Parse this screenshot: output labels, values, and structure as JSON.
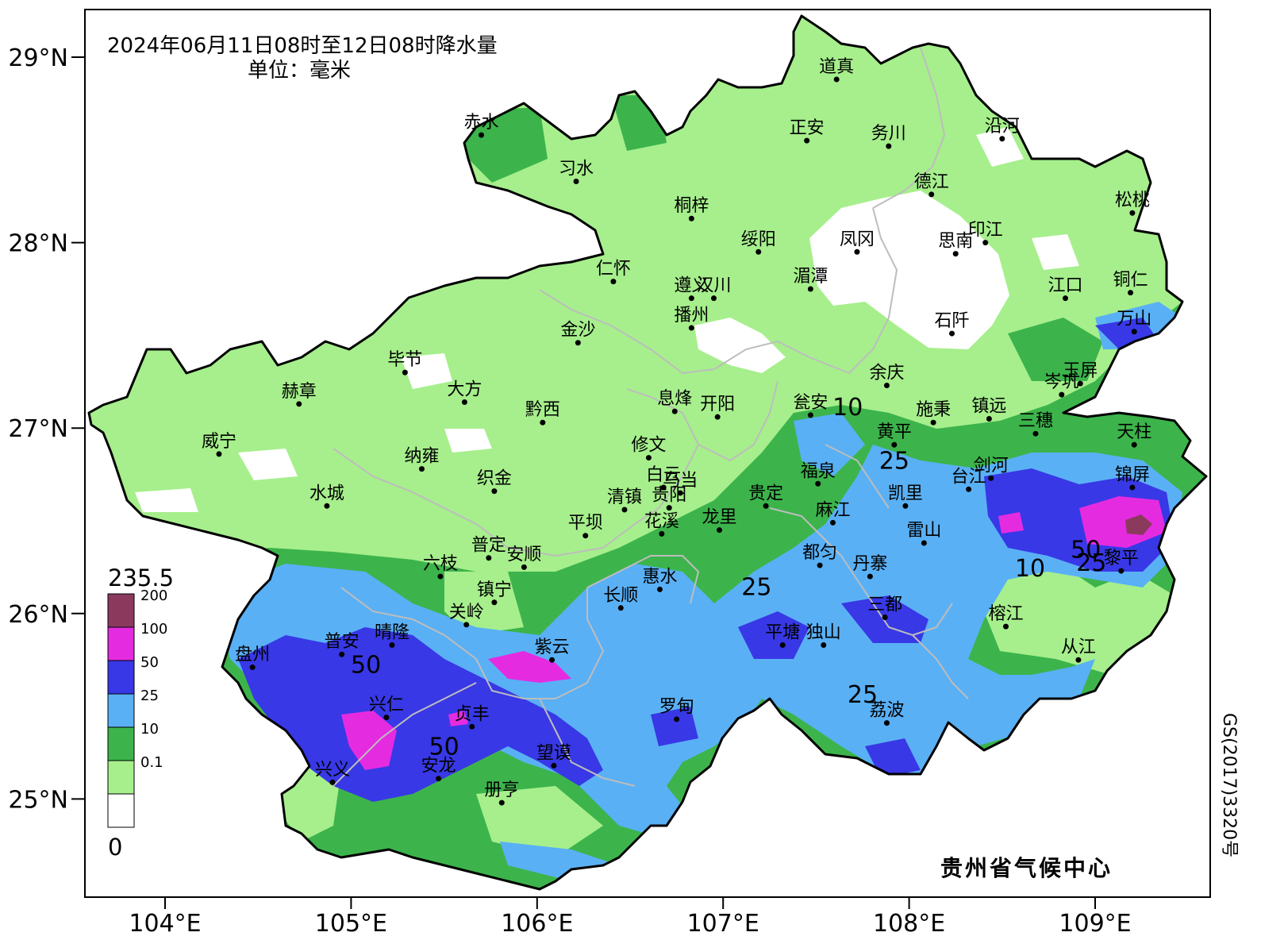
{
  "title": {
    "line1": "2024年06月11日08时至12日08时降水量",
    "line2": "单位：毫米"
  },
  "credit": "贵州省气候中心",
  "approval_no": "GS(2017)3320号",
  "axes": {
    "latitude_labels": [
      "29°N",
      "28°N",
      "27°N",
      "26°N",
      "25°N"
    ],
    "longitude_labels": [
      "104°E",
      "105°E",
      "106°E",
      "107°E",
      "108°E",
      "109°E"
    ]
  },
  "legend": {
    "max_label": "235.5",
    "min_label": "0",
    "classes": [
      {
        "label": "200",
        "color": "#8b3a5e"
      },
      {
        "label": "100",
        "color": "#e52be0"
      },
      {
        "label": "50",
        "color": "#3838e6"
      },
      {
        "label": "25",
        "color": "#5ab0f5"
      },
      {
        "label": "10",
        "color": "#3cb44b"
      },
      {
        "label": "0.1",
        "color": "#a6ef8c"
      },
      {
        "label": "",
        "color": "#ffffff"
      }
    ]
  },
  "cities": [
    {
      "name": "道真",
      "lon": 107.61,
      "lat": 28.88
    },
    {
      "name": "赤水",
      "lon": 105.7,
      "lat": 28.58
    },
    {
      "name": "正安",
      "lon": 107.45,
      "lat": 28.55
    },
    {
      "name": "务川",
      "lon": 107.89,
      "lat": 28.52
    },
    {
      "name": "沿河",
      "lon": 108.5,
      "lat": 28.56
    },
    {
      "name": "习水",
      "lon": 106.21,
      "lat": 28.33
    },
    {
      "name": "德江",
      "lon": 108.12,
      "lat": 28.26
    },
    {
      "name": "松桃",
      "lon": 109.2,
      "lat": 28.16
    },
    {
      "name": "桐梓",
      "lon": 106.83,
      "lat": 28.13
    },
    {
      "name": "凤冈",
      "lon": 107.72,
      "lat": 27.95
    },
    {
      "name": "印江",
      "lon": 108.41,
      "lat": 28.0
    },
    {
      "name": "思南",
      "lon": 108.25,
      "lat": 27.94
    },
    {
      "name": "绥阳",
      "lon": 107.19,
      "lat": 27.95
    },
    {
      "name": "仁怀",
      "lon": 106.41,
      "lat": 27.79
    },
    {
      "name": "湄潭",
      "lon": 107.47,
      "lat": 27.75
    },
    {
      "name": "遵义",
      "lon": 106.83,
      "lat": 27.7
    },
    {
      "name": "汉川",
      "lon": 106.95,
      "lat": 27.7
    },
    {
      "name": "江口",
      "lon": 108.84,
      "lat": 27.7
    },
    {
      "name": "铜仁",
      "lon": 109.19,
      "lat": 27.73
    },
    {
      "name": "播州",
      "lon": 106.83,
      "lat": 27.54
    },
    {
      "name": "石阡",
      "lon": 108.23,
      "lat": 27.51
    },
    {
      "name": "金沙",
      "lon": 106.22,
      "lat": 27.46
    },
    {
      "name": "万山",
      "lon": 109.21,
      "lat": 27.52
    },
    {
      "name": "毕节",
      "lon": 105.29,
      "lat": 27.3
    },
    {
      "name": "余庆",
      "lon": 107.88,
      "lat": 27.23
    },
    {
      "name": "岑巩",
      "lon": 108.82,
      "lat": 27.18
    },
    {
      "name": "玉屏",
      "lon": 108.92,
      "lat": 27.24
    },
    {
      "name": "赫章",
      "lon": 104.72,
      "lat": 27.13
    },
    {
      "name": "大方",
      "lon": 105.61,
      "lat": 27.14
    },
    {
      "name": "黔西",
      "lon": 106.03,
      "lat": 27.03
    },
    {
      "name": "息烽",
      "lon": 106.74,
      "lat": 27.09
    },
    {
      "name": "开阳",
      "lon": 106.97,
      "lat": 27.06
    },
    {
      "name": "瓮安",
      "lon": 107.47,
      "lat": 27.07
    },
    {
      "name": "施秉",
      "lon": 108.13,
      "lat": 27.03
    },
    {
      "name": "镇远",
      "lon": 108.43,
      "lat": 27.05
    },
    {
      "name": "三穗",
      "lon": 108.68,
      "lat": 26.97
    },
    {
      "name": "威宁",
      "lon": 104.29,
      "lat": 26.86
    },
    {
      "name": "黄平",
      "lon": 107.92,
      "lat": 26.91
    },
    {
      "name": "天柱",
      "lon": 109.21,
      "lat": 26.91
    },
    {
      "name": "纳雍",
      "lon": 105.38,
      "lat": 26.78
    },
    {
      "name": "修文",
      "lon": 106.6,
      "lat": 26.84
    },
    {
      "name": "织金",
      "lon": 105.77,
      "lat": 26.66
    },
    {
      "name": "白云",
      "lon": 106.68,
      "lat": 26.68
    },
    {
      "name": "乌当",
      "lon": 106.77,
      "lat": 26.65
    },
    {
      "name": "福泉",
      "lon": 107.51,
      "lat": 26.7
    },
    {
      "name": "剑河",
      "lon": 108.44,
      "lat": 26.73
    },
    {
      "name": "台江",
      "lon": 108.32,
      "lat": 26.67
    },
    {
      "name": "锦屏",
      "lon": 109.2,
      "lat": 26.68
    },
    {
      "name": "水城",
      "lon": 104.87,
      "lat": 26.58
    },
    {
      "name": "清镇",
      "lon": 106.47,
      "lat": 26.56
    },
    {
      "name": "贵阳",
      "lon": 106.71,
      "lat": 26.57
    },
    {
      "name": "贵定",
      "lon": 107.23,
      "lat": 26.58
    },
    {
      "name": "凯里",
      "lon": 107.98,
      "lat": 26.58
    },
    {
      "name": "麻江",
      "lon": 107.59,
      "lat": 26.49
    },
    {
      "name": "平坝",
      "lon": 106.26,
      "lat": 26.42
    },
    {
      "name": "花溪",
      "lon": 106.67,
      "lat": 26.43
    },
    {
      "name": "龙里",
      "lon": 106.98,
      "lat": 26.45
    },
    {
      "name": "雷山",
      "lon": 108.08,
      "lat": 26.38
    },
    {
      "name": "普定",
      "lon": 105.74,
      "lat": 26.3
    },
    {
      "name": "安顺",
      "lon": 105.93,
      "lat": 26.25
    },
    {
      "name": "都匀",
      "lon": 107.52,
      "lat": 26.26
    },
    {
      "name": "黎平",
      "lon": 109.14,
      "lat": 26.23
    },
    {
      "name": "六枝",
      "lon": 105.48,
      "lat": 26.2
    },
    {
      "name": "丹寨",
      "lon": 107.79,
      "lat": 26.2
    },
    {
      "name": "惠水",
      "lon": 106.66,
      "lat": 26.13
    },
    {
      "name": "镇宁",
      "lon": 105.77,
      "lat": 26.06
    },
    {
      "name": "长顺",
      "lon": 106.45,
      "lat": 26.03
    },
    {
      "name": "三都",
      "lon": 107.87,
      "lat": 25.98
    },
    {
      "name": "关岭",
      "lon": 105.62,
      "lat": 25.94
    },
    {
      "name": "榕江",
      "lon": 108.52,
      "lat": 25.93
    },
    {
      "name": "晴隆",
      "lon": 105.22,
      "lat": 25.83
    },
    {
      "name": "普安",
      "lon": 104.95,
      "lat": 25.78
    },
    {
      "name": "平塘",
      "lon": 107.32,
      "lat": 25.83
    },
    {
      "name": "独山",
      "lon": 107.54,
      "lat": 25.83
    },
    {
      "name": "盘州",
      "lon": 104.47,
      "lat": 25.71
    },
    {
      "name": "紫云",
      "lon": 106.08,
      "lat": 25.75
    },
    {
      "name": "从江",
      "lon": 108.91,
      "lat": 25.75
    },
    {
      "name": "兴仁",
      "lon": 105.19,
      "lat": 25.44
    },
    {
      "name": "贞丰",
      "lon": 105.65,
      "lat": 25.39
    },
    {
      "name": "罗甸",
      "lon": 106.75,
      "lat": 25.43
    },
    {
      "name": "荔波",
      "lon": 107.88,
      "lat": 25.41
    },
    {
      "name": "望谟",
      "lon": 106.09,
      "lat": 25.18
    },
    {
      "name": "安龙",
      "lon": 105.47,
      "lat": 25.11
    },
    {
      "name": "兴义",
      "lon": 104.9,
      "lat": 25.09
    },
    {
      "name": "册亨",
      "lon": 105.81,
      "lat": 24.98
    }
  ],
  "contour_labels": [
    {
      "text": "10",
      "lon": 107.67,
      "lat": 27.07
    },
    {
      "text": "25",
      "lon": 107.92,
      "lat": 26.78
    },
    {
      "text": "25",
      "lon": 107.18,
      "lat": 26.1
    },
    {
      "text": "50",
      "lon": 105.08,
      "lat": 25.68
    },
    {
      "text": "50",
      "lon": 105.5,
      "lat": 25.24
    },
    {
      "text": "25",
      "lon": 107.75,
      "lat": 25.52
    },
    {
      "text": "10",
      "lon": 108.65,
      "lat": 26.2
    },
    {
      "text": "50",
      "lon": 108.95,
      "lat": 26.3
    },
    {
      "text": "25",
      "lon": 108.98,
      "lat": 26.23
    }
  ]
}
